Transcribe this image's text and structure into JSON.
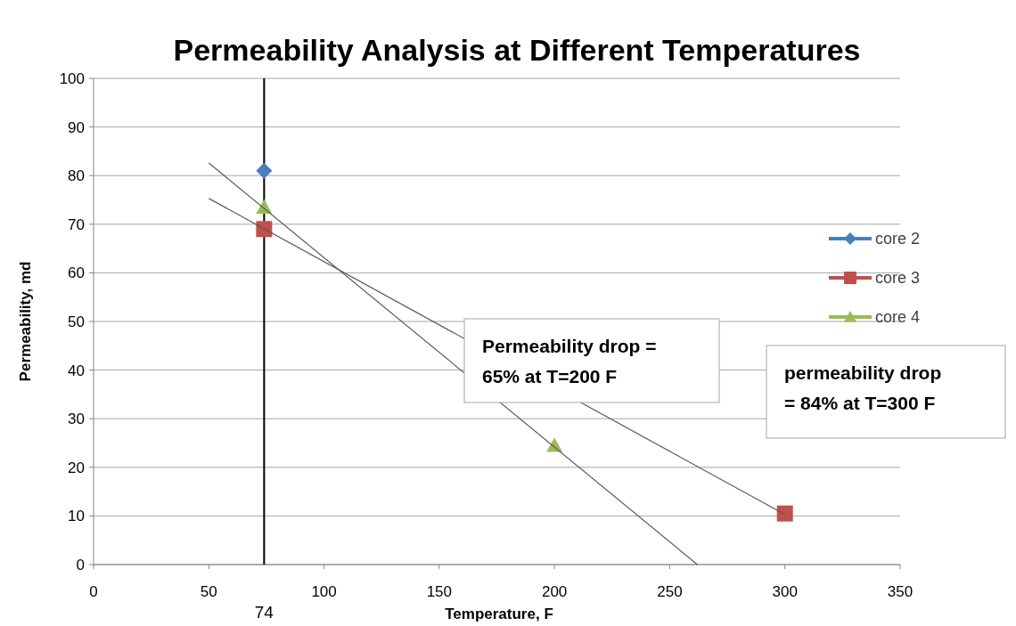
{
  "chart_data": {
    "type": "scatter",
    "title": "Permeability Analysis at Different Temperatures",
    "xlabel": "Temperature, F",
    "ylabel": "Permeability, md",
    "xlim": [
      0,
      350
    ],
    "xticks": [
      0,
      50,
      100,
      150,
      200,
      250,
      300,
      350
    ],
    "ylim": [
      0,
      100
    ],
    "yticks": [
      0,
      10,
      20,
      30,
      40,
      50,
      60,
      70,
      80,
      90,
      100
    ],
    "grid": "y",
    "legend": "right",
    "series": [
      {
        "name": "core 2",
        "color": "#4a7ebb",
        "marker": "diamond",
        "x": [
          74
        ],
        "values": [
          81
        ]
      },
      {
        "name": "core 3",
        "color": "#c0504d",
        "marker": "square",
        "x": [
          74,
          300
        ],
        "values": [
          69,
          10.5
        ]
      },
      {
        "name": "core 4",
        "color": "#9bbb59",
        "marker": "triangle",
        "x": [
          74,
          200
        ],
        "values": [
          73.5,
          24.5
        ]
      },
      {
        "type": "line",
        "color": "#595959",
        "marker": "none",
        "x": [
          50,
          300
        ],
        "values": [
          75.3,
          10.3
        ]
      },
      {
        "type": "line",
        "color": "#595959",
        "marker": "none",
        "x": [
          50,
          262
        ],
        "values": [
          82.6,
          0
        ]
      }
    ],
    "ref_lines": [
      {
        "axis": "x",
        "value": 74,
        "label": "74",
        "color": "#000000"
      }
    ],
    "annotations": [
      "Permeability drop = 65% at T=200 F",
      "permeability drop = 84% at T=300 F"
    ]
  }
}
